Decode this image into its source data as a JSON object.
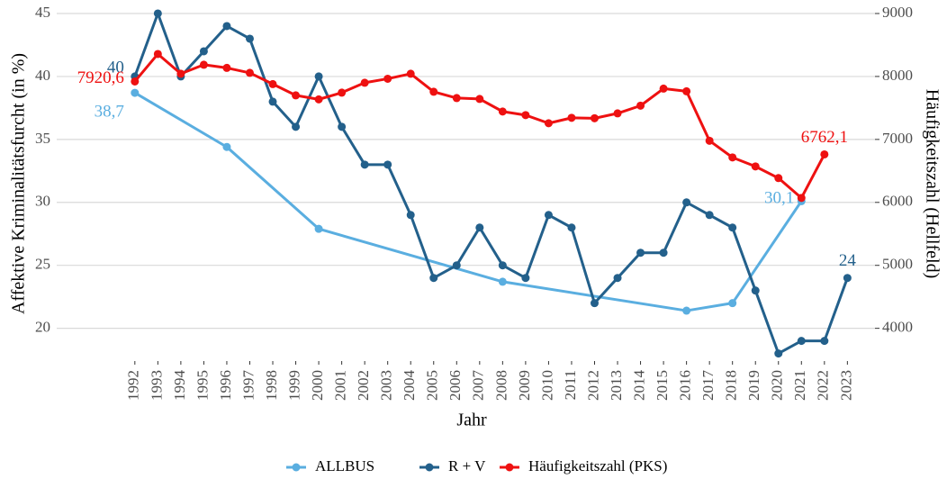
{
  "chart_data": {
    "type": "line",
    "xlabel": "Jahr",
    "ylabel": "Affektive Kriminalitätsfurcht (in %)",
    "y2label": "Häufigkeitszahl (Hellfeld)",
    "xlim": [
      1988.6,
      2024.2
    ],
    "xticks": [
      1992,
      1993,
      1994,
      1995,
      1996,
      1997,
      1998,
      1999,
      2000,
      2001,
      2002,
      2003,
      2004,
      2005,
      2006,
      2007,
      2008,
      2009,
      2010,
      2011,
      2012,
      2013,
      2014,
      2015,
      2016,
      2017,
      2018,
      2019,
      2020,
      2021,
      2022,
      2023
    ],
    "ylim": [
      17.4,
      45.5
    ],
    "yticks": [
      20,
      25,
      30,
      35,
      40,
      45
    ],
    "y2lim": [
      3480,
      9100
    ],
    "y2ticks": [
      4000,
      5000,
      6000,
      7000,
      8000,
      9000
    ],
    "grid": true,
    "legend": "bottom",
    "series": [
      {
        "name": "ALLBUS",
        "color": "#5aaee0",
        "x": [
          1992,
          1996,
          2000,
          2008,
          2016,
          2018,
          2021
        ],
        "values": [
          38.7,
          34.4,
          27.9,
          23.7,
          21.4,
          22.0,
          30.1
        ],
        "value_labels": [
          "38,7",
          null,
          null,
          null,
          null,
          null,
          "30,1"
        ]
      },
      {
        "name": "R + V",
        "color": "#23608b",
        "x": [
          1992,
          1993,
          1994,
          1995,
          1996,
          1997,
          1998,
          1999,
          2000,
          2001,
          2002,
          2003,
          2004,
          2005,
          2006,
          2007,
          2008,
          2009,
          2010,
          2011,
          2012,
          2013,
          2014,
          2015,
          2016,
          2017,
          2018,
          2019,
          2020,
          2021,
          2022,
          2023
        ],
        "values": [
          40,
          45,
          40,
          42,
          44,
          43,
          38,
          36,
          40,
          36,
          33,
          33,
          29,
          24,
          25,
          28,
          25,
          24,
          29,
          28,
          22,
          24,
          26,
          26,
          30,
          29,
          28,
          23,
          18,
          19,
          19,
          24
        ],
        "value_labels": [
          "40",
          null,
          null,
          null,
          null,
          null,
          null,
          null,
          null,
          null,
          null,
          null,
          null,
          null,
          null,
          null,
          null,
          null,
          null,
          null,
          null,
          null,
          null,
          null,
          null,
          null,
          null,
          null,
          null,
          null,
          null,
          "24"
        ]
      },
      {
        "name": "Häufigkeitszahl (PKS)",
        "color": "#ee1111",
        "axis": "y2",
        "x": [
          1992,
          1993,
          1994,
          1995,
          1996,
          1997,
          1998,
          1999,
          2000,
          2001,
          2002,
          2003,
          2004,
          2005,
          2006,
          2007,
          2008,
          2009,
          2010,
          2011,
          2012,
          2013,
          2014,
          2015,
          2016,
          2017,
          2018,
          2019,
          2020,
          2021,
          2022
        ],
        "values": [
          7920.6,
          8357,
          8043,
          8186,
          8136,
          8057,
          7879,
          7700,
          7636,
          7743,
          7900,
          7964,
          8043,
          7757,
          7657,
          7643,
          7443,
          7386,
          7257,
          7343,
          7336,
          7414,
          7536,
          7807,
          7764,
          6979,
          6714,
          6571,
          6386,
          6071,
          6762.1
        ],
        "value_labels": [
          "7920,6",
          null,
          null,
          null,
          null,
          null,
          null,
          null,
          null,
          null,
          null,
          null,
          null,
          null,
          null,
          null,
          null,
          null,
          null,
          null,
          null,
          null,
          null,
          null,
          null,
          null,
          null,
          null,
          null,
          null,
          "6762,1"
        ]
      }
    ]
  }
}
